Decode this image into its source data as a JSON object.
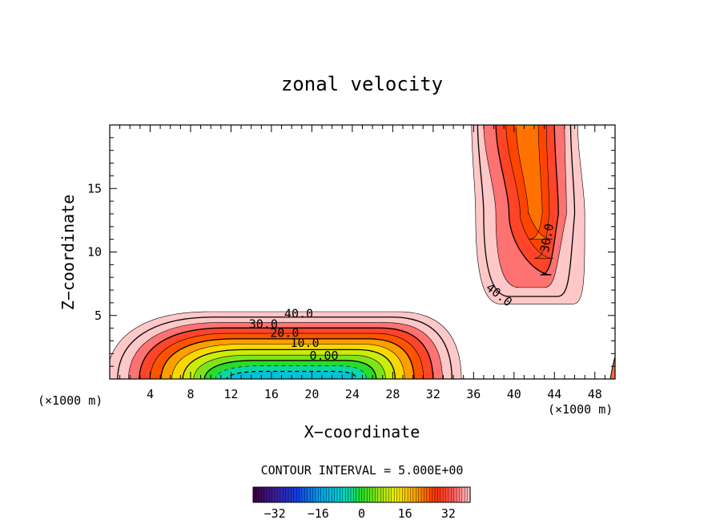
{
  "chart_data": {
    "type": "contour",
    "title": "zonal velocity",
    "xlabel": "X−coordinate",
    "ylabel": "Z−coordinate",
    "x_unit_left": "(×1000 m)",
    "x_unit_right": "(×1000 m)",
    "xlim": [
      0,
      50
    ],
    "ylim": [
      0,
      20
    ],
    "x_ticks": [
      4,
      8,
      12,
      16,
      20,
      24,
      28,
      32,
      36,
      40,
      44,
      48
    ],
    "x_tick_labels": [
      "4",
      "8",
      "12",
      "16",
      "20",
      "24",
      "28",
      "32",
      "36",
      "40",
      "44",
      "48"
    ],
    "y_ticks": [
      5,
      10,
      15
    ],
    "y_tick_labels": [
      "5",
      "10",
      "15"
    ],
    "contour_interval_text": "CONTOUR INTERVAL = 5.000E+00",
    "contour_labels": [
      {
        "text": "40.0",
        "x": 18.7,
        "z": 5.1,
        "rotate": 0
      },
      {
        "text": "30.0",
        "x": 15.2,
        "z": 4.3,
        "rotate": 0
      },
      {
        "text": "20.0",
        "x": 17.3,
        "z": 3.6,
        "rotate": 0
      },
      {
        "text": "10.0",
        "x": 19.3,
        "z": 2.8,
        "rotate": 0
      },
      {
        "text": "0.00",
        "x": 21.2,
        "z": 1.8,
        "rotate": 0
      },
      {
        "text": "30.0",
        "x": 43.3,
        "z": 11.1,
        "rotate": -80
      },
      {
        "text": "40.0",
        "x": 38.5,
        "z": 6.6,
        "rotate": 38
      }
    ],
    "colorbar": {
      "ticks": [
        -32,
        -16,
        0,
        16,
        32
      ],
      "tick_labels": [
        "−32",
        "−16",
        "0",
        "16",
        "32"
      ],
      "range": [
        -40,
        40
      ]
    },
    "regions": [
      {
        "name": "lower-left jet",
        "x_range": [
          0,
          35
        ],
        "z_range": [
          0,
          5.3
        ]
      },
      {
        "name": "upper-right jet",
        "x_range": [
          35,
          47
        ],
        "z_range": [
          6,
          20
        ]
      }
    ]
  }
}
